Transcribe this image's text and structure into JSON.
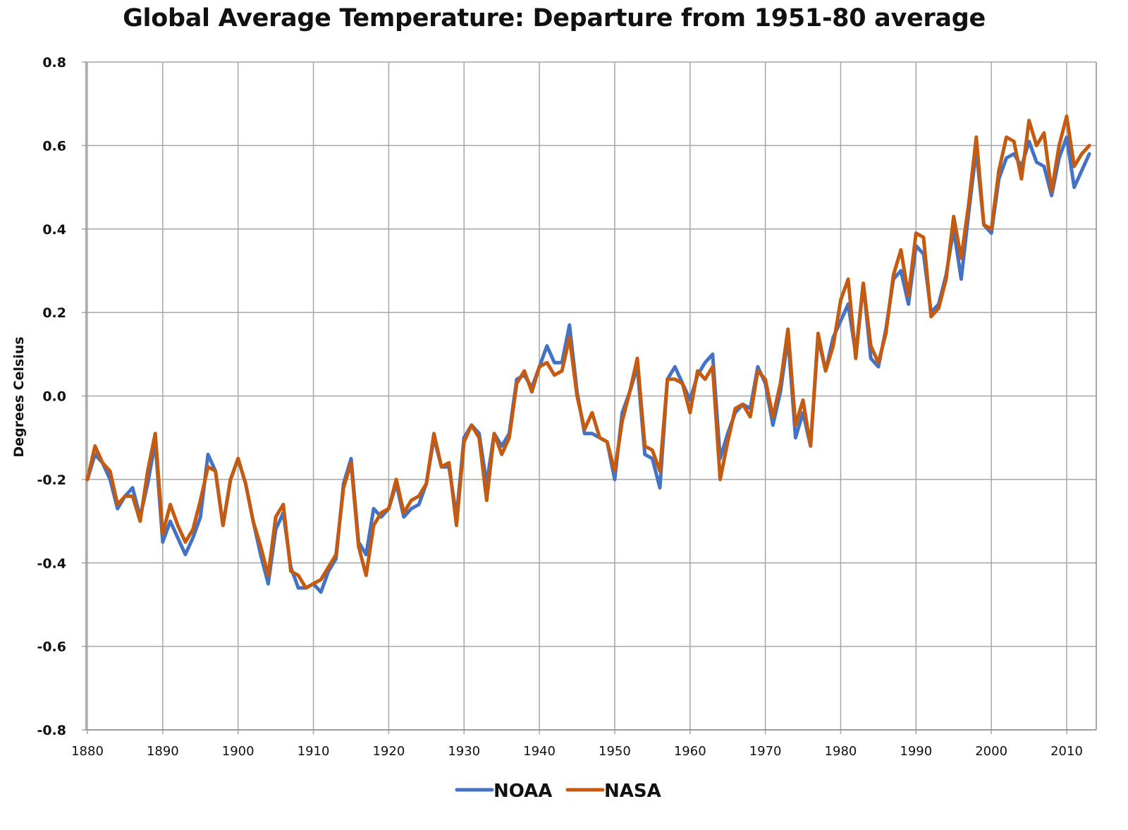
{
  "chart_data": {
    "type": "line",
    "title": "Global Average Temperature: Departure from 1951-80 average",
    "xlabel": "",
    "ylabel": "Degrees Celsius",
    "xlim": [
      1880,
      2013
    ],
    "ylim": [
      -0.8,
      0.8
    ],
    "grid": true,
    "legend_position": "bottom",
    "x_ticks": [
      1880,
      1890,
      1900,
      1910,
      1920,
      1930,
      1940,
      1950,
      1960,
      1970,
      1980,
      1990,
      2000,
      2010
    ],
    "x_tick_labels": [
      "1880",
      "1890",
      "1900",
      "1910",
      "1920",
      "1930",
      "1940",
      "1950",
      "1960",
      "1970",
      "1980",
      "1990",
      "2000",
      "2010"
    ],
    "y_ticks": [
      0.8,
      0.6,
      0.4,
      0.2,
      0.0,
      -0.2,
      -0.4,
      -0.6,
      -0.8
    ],
    "y_tick_labels": [
      "0.8",
      "0.6",
      "0.4",
      "0.2",
      "0.0",
      "-0.2",
      "-0.4",
      "-0.6",
      "-0.8"
    ],
    "x_start": 1880,
    "series": [
      {
        "name": "NOAA",
        "color": "#4472C4",
        "values": [
          -0.2,
          -0.14,
          -0.16,
          -0.2,
          -0.27,
          -0.24,
          -0.22,
          -0.29,
          -0.21,
          -0.11,
          -0.35,
          -0.3,
          -0.34,
          -0.38,
          -0.34,
          -0.29,
          -0.14,
          -0.18,
          -0.31,
          -0.2,
          -0.15,
          -0.21,
          -0.3,
          -0.38,
          -0.45,
          -0.32,
          -0.28,
          -0.41,
          -0.46,
          -0.46,
          -0.45,
          -0.47,
          -0.42,
          -0.39,
          -0.21,
          -0.15,
          -0.35,
          -0.38,
          -0.27,
          -0.29,
          -0.27,
          -0.21,
          -0.29,
          -0.27,
          -0.26,
          -0.21,
          -0.1,
          -0.17,
          -0.17,
          -0.29,
          -0.1,
          -0.07,
          -0.09,
          -0.21,
          -0.09,
          -0.12,
          -0.09,
          0.04,
          0.05,
          0.02,
          0.07,
          0.12,
          0.08,
          0.08,
          0.17,
          0.01,
          -0.09,
          -0.09,
          -0.1,
          -0.11,
          -0.2,
          -0.04,
          0.01,
          0.07,
          -0.14,
          -0.15,
          -0.22,
          0.04,
          0.07,
          0.03,
          -0.01,
          0.05,
          0.08,
          0.1,
          -0.15,
          -0.09,
          -0.04,
          -0.02,
          -0.03,
          0.07,
          0.03,
          -0.07,
          0.01,
          0.14,
          -0.1,
          -0.04,
          -0.12,
          0.14,
          0.06,
          0.14,
          0.18,
          0.22,
          0.1,
          0.27,
          0.09,
          0.07,
          0.16,
          0.28,
          0.3,
          0.22,
          0.36,
          0.34,
          0.2,
          0.22,
          0.29,
          0.4,
          0.28,
          0.44,
          0.59,
          0.41,
          0.39,
          0.52,
          0.57,
          0.58,
          0.55,
          0.61,
          0.56,
          0.55,
          0.48,
          0.57,
          0.62,
          0.5,
          0.54,
          0.58
        ]
      },
      {
        "name": "NASA",
        "color": "#C55A11",
        "values": [
          -0.2,
          -0.12,
          -0.16,
          -0.18,
          -0.26,
          -0.24,
          -0.24,
          -0.3,
          -0.18,
          -0.09,
          -0.33,
          -0.26,
          -0.31,
          -0.35,
          -0.32,
          -0.25,
          -0.17,
          -0.18,
          -0.31,
          -0.2,
          -0.15,
          -0.21,
          -0.3,
          -0.36,
          -0.43,
          -0.29,
          -0.26,
          -0.42,
          -0.43,
          -0.46,
          -0.45,
          -0.44,
          -0.41,
          -0.38,
          -0.22,
          -0.16,
          -0.36,
          -0.43,
          -0.31,
          -0.28,
          -0.27,
          -0.2,
          -0.28,
          -0.25,
          -0.24,
          -0.21,
          -0.09,
          -0.17,
          -0.16,
          -0.31,
          -0.11,
          -0.07,
          -0.1,
          -0.25,
          -0.09,
          -0.14,
          -0.1,
          0.03,
          0.06,
          0.01,
          0.07,
          0.08,
          0.05,
          0.06,
          0.14,
          0.0,
          -0.08,
          -0.04,
          -0.1,
          -0.11,
          -0.18,
          -0.06,
          0.01,
          0.09,
          -0.12,
          -0.13,
          -0.18,
          0.04,
          0.04,
          0.03,
          -0.04,
          0.06,
          0.04,
          0.07,
          -0.2,
          -0.11,
          -0.03,
          -0.02,
          -0.05,
          0.06,
          0.04,
          -0.05,
          0.03,
          0.16,
          -0.07,
          -0.01,
          -0.12,
          0.15,
          0.06,
          0.12,
          0.23,
          0.28,
          0.09,
          0.27,
          0.12,
          0.08,
          0.15,
          0.29,
          0.35,
          0.24,
          0.39,
          0.38,
          0.19,
          0.21,
          0.28,
          0.43,
          0.33,
          0.46,
          0.62,
          0.41,
          0.4,
          0.54,
          0.62,
          0.61,
          0.52,
          0.66,
          0.6,
          0.63,
          0.49,
          0.6,
          0.67,
          0.55,
          0.58,
          0.6
        ]
      }
    ]
  }
}
